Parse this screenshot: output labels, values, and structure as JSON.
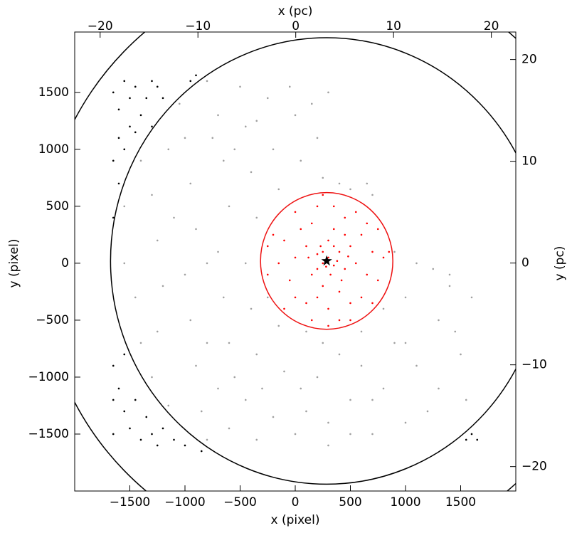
{
  "chart_data": {
    "type": "scatter",
    "xlabel": "x (pixel)",
    "ylabel": "y (pixel)",
    "x2label": "x (pc)",
    "y2label": "y (pc)",
    "xlim": [
      -2000,
      2000
    ],
    "ylim": [
      -2000,
      2030
    ],
    "xticks": [
      {
        "value": -1500,
        "label": "−1500"
      },
      {
        "value": -1000,
        "label": "−1000"
      },
      {
        "value": -500,
        "label": "−500"
      },
      0,
      500,
      1000,
      1500
    ],
    "yticks": [
      {
        "value": -1500,
        "label": "−1500"
      },
      {
        "value": -1000,
        "label": "−1000"
      },
      {
        "value": -500,
        "label": "−500"
      },
      0,
      500,
      1000,
      1500
    ],
    "x2lim": [
      -22.6,
      22.5
    ],
    "y2lim": [
      -22.4,
      22.7
    ],
    "x2ticks": [
      {
        "value": -20,
        "label": "−20"
      },
      {
        "value": -10,
        "label": "−10"
      },
      0,
      10,
      20
    ],
    "y2ticks": [
      {
        "value": -20,
        "label": "−20"
      },
      {
        "value": -10,
        "label": "−10"
      },
      0,
      10,
      20
    ],
    "circles": [
      {
        "center": [
          285,
          20
        ],
        "radius": 600,
        "color": "#ee1111"
      },
      {
        "center": [
          285,
          20
        ],
        "radius": 1960,
        "color": "#000000"
      },
      {
        "center": [
          285,
          20
        ],
        "radius": 2600,
        "color": "#000000"
      }
    ],
    "star": [
      285,
      20
    ],
    "star_color": "#000000",
    "series": [
      {
        "color": "#a0a0a0",
        "x": [
          -1400,
          -1300,
          -1250,
          -1450,
          -1400,
          -1300,
          -1150,
          -1050,
          -1000,
          -950,
          -900,
          -1000,
          -950,
          -900,
          -850,
          -800,
          -800,
          -700,
          -650,
          -600,
          -700,
          -650,
          -600,
          -700,
          -600,
          -500,
          -450,
          -400,
          -350,
          -450,
          -400,
          -350,
          -450,
          -350,
          -250,
          -200,
          -150,
          -150,
          -100,
          -200,
          -50,
          0,
          50,
          100,
          50,
          0,
          150,
          200,
          250,
          250,
          200,
          300,
          300,
          -1550,
          -1550,
          -1250,
          -1150,
          -800,
          -550,
          -250,
          -300,
          100,
          400,
          500,
          600,
          700,
          800,
          900,
          1000,
          1100,
          1200,
          1300,
          1400,
          1500,
          1600,
          1550,
          1000,
          900,
          1100,
          1250,
          1400,
          800,
          600,
          400,
          500,
          650,
          700,
          300,
          -800,
          -1100,
          -1200,
          -550,
          1300,
          1000,
          700,
          -750,
          -350,
          500,
          1450
        ],
        "y": [
          900,
          600,
          200,
          -300,
          -700,
          -1000,
          -1250,
          1400,
          1100,
          700,
          300,
          -100,
          -500,
          -900,
          -1300,
          -1550,
          1600,
          1300,
          900,
          500,
          100,
          -300,
          -700,
          -1100,
          -1450,
          1550,
          1200,
          800,
          400,
          0,
          -400,
          -800,
          -1200,
          -1550,
          1450,
          1000,
          650,
          -550,
          -950,
          -1350,
          1550,
          1300,
          900,
          -600,
          -1100,
          -1500,
          1400,
          1100,
          750,
          -700,
          -1000,
          -1400,
          1500,
          0,
          500,
          -600,
          1000,
          0,
          1000,
          -300,
          -1100,
          -1300,
          -800,
          -1200,
          -900,
          -1500,
          -1100,
          -700,
          -300,
          -900,
          -1300,
          -500,
          -200,
          -800,
          -300,
          -1200,
          -1400,
          100,
          0,
          -50,
          -100,
          -400,
          -600,
          700,
          650,
          700,
          600,
          -1600,
          -700,
          400,
          -200,
          -1000,
          -1100,
          -700,
          -1200,
          1100,
          1250,
          -1500,
          -600
        ]
      },
      {
        "color": "#000000",
        "x": [
          -1650,
          -1600,
          -1550,
          -1500,
          -1450,
          -1400,
          -1350,
          -1300,
          -1600,
          -1650,
          -1550,
          -1500,
          -1450,
          -1600,
          -1650,
          -1300,
          -1250,
          -1200,
          -950,
          -900,
          -1650,
          -1600,
          -1550,
          -1650,
          -1500,
          -1450,
          -1400,
          -1350,
          -1300,
          -1250,
          -1200,
          -1100,
          -1550,
          -1650,
          -1000,
          -850,
          1600,
          1650,
          1550
        ],
        "y": [
          1500,
          1350,
          1600,
          1450,
          1550,
          1300,
          1450,
          1600,
          1100,
          900,
          1000,
          1200,
          1150,
          700,
          400,
          1200,
          1550,
          1450,
          1600,
          1650,
          -900,
          -1100,
          -1300,
          -1500,
          -1450,
          -1200,
          -1550,
          -1350,
          -1500,
          -1600,
          -1450,
          -1550,
          -800,
          -1200,
          -1600,
          -1650,
          -1500,
          -1550,
          -1550
        ]
      },
      {
        "color": "#ff0000",
        "x": [
          300,
          250,
          350,
          200,
          400,
          150,
          450,
          300,
          250,
          500,
          100,
          350,
          200,
          550,
          0,
          400,
          150,
          600,
          650,
          -50,
          300,
          500,
          450,
          50,
          -100,
          700,
          600,
          100,
          350,
          200,
          0,
          -150,
          750,
          800,
          -200,
          550,
          400,
          150,
          -250,
          650,
          250,
          850,
          -250,
          500,
          750,
          -100,
          300,
          700,
          0,
          450,
          350,
          250,
          200,
          320,
          380,
          280,
          230,
          420,
          120,
          480
        ],
        "y": [
          50,
          0,
          -20,
          80,
          100,
          -100,
          -50,
          200,
          -200,
          150,
          150,
          300,
          -300,
          0,
          50,
          -250,
          350,
          250,
          -100,
          -150,
          -400,
          -350,
          400,
          300,
          200,
          100,
          -300,
          -350,
          500,
          500,
          -300,
          0,
          -150,
          50,
          250,
          450,
          -500,
          -500,
          -100,
          350,
          600,
          100,
          150,
          -500,
          300,
          -400,
          -550,
          -350,
          450,
          250,
          150,
          100,
          -50,
          -100,
          20,
          -30,
          150,
          -150,
          50,
          60
        ]
      }
    ]
  }
}
